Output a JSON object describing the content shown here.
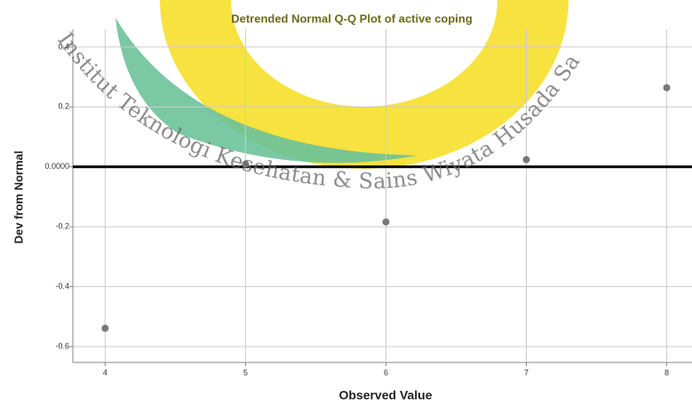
{
  "chart_data": {
    "type": "scatter",
    "title": "Detrended Normal Q-Q Plot of active coping",
    "x_label": "Observed Value",
    "y_label": "Dev from Normal",
    "x": [
      4,
      5,
      6,
      7,
      8
    ],
    "values": [
      -0.539,
      0.009,
      -0.184,
      0.024,
      0.264
    ],
    "color": "#777777",
    "xlim": [
      3.77,
      8.18
    ],
    "ylim": [
      -0.653,
      0.459
    ],
    "xticks": [
      4,
      5,
      6,
      7,
      8
    ],
    "yticks": [
      0.4,
      0.2,
      {
        "value": 0,
        "label": "0.0000"
      },
      -0.2,
      -0.4,
      -0.6
    ],
    "reference_line": 0,
    "grid": true,
    "watermark": "Institut Teknologi Kesehatan & Sains   Wiyata Husada Samarinda"
  }
}
